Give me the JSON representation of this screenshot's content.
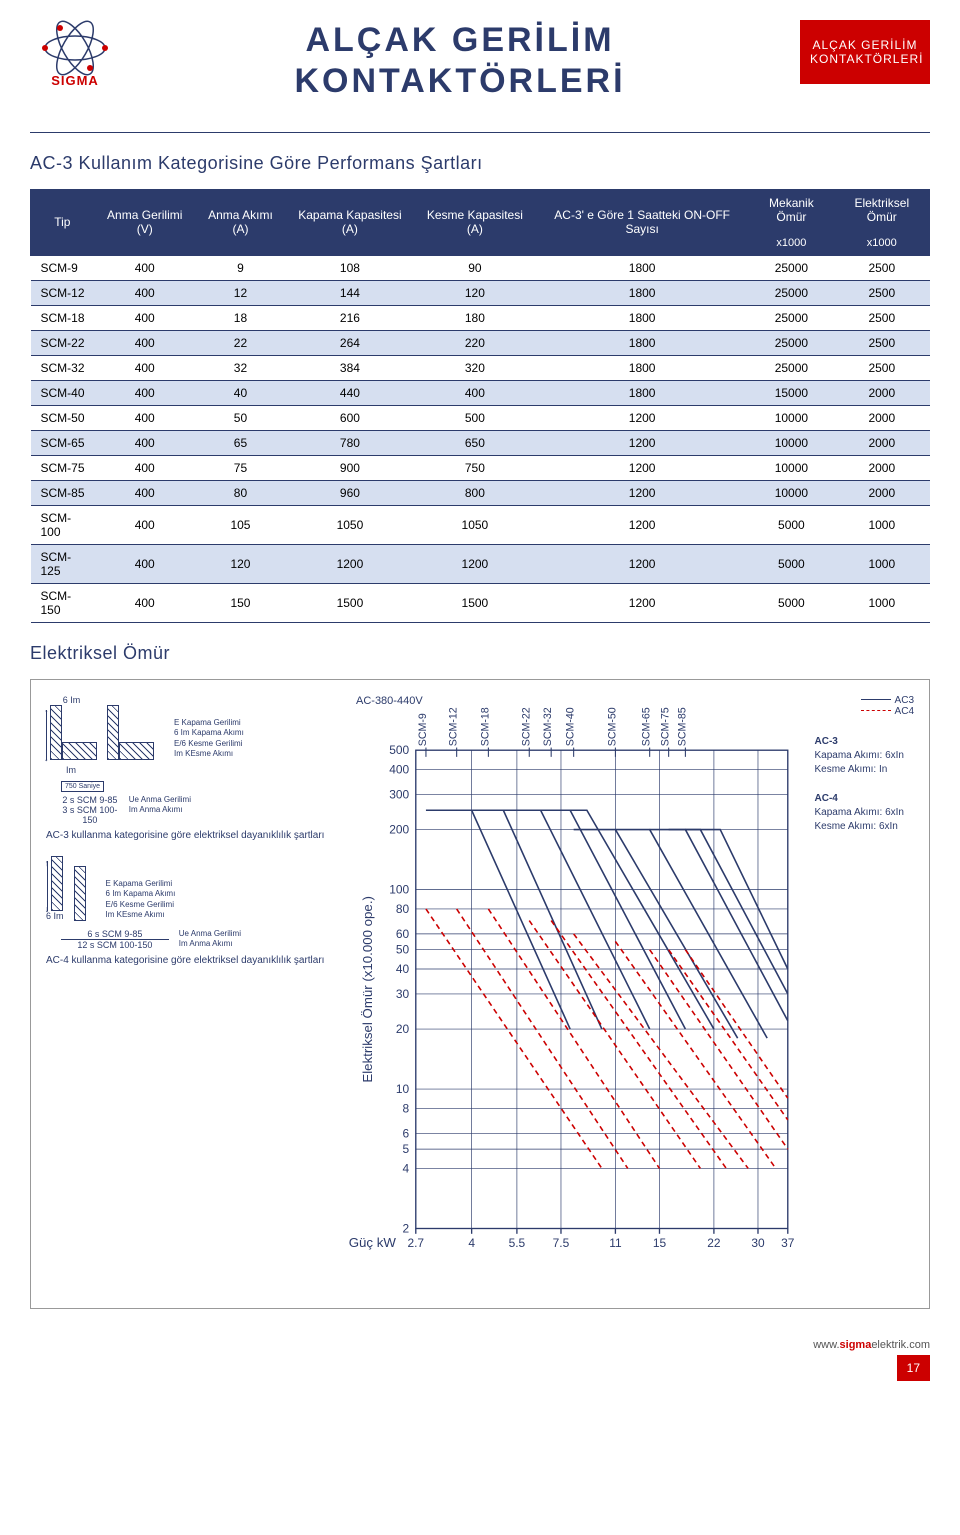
{
  "header": {
    "logo_text": "SIGMA",
    "title_line1": "ALÇAK GERİLİM",
    "title_line2": "KONTAKTÖRLERİ",
    "badge_line1": "ALÇAK GERİLİM",
    "badge_line2": "KONTAKTÖRLERİ"
  },
  "table": {
    "section_title": "AC-3 Kullanım Kategorisine Göre Performans Şartları",
    "headers": {
      "tip": "Tip",
      "gerilim": "Anma Gerilimi (V)",
      "akim": "Anma Akımı (A)",
      "kapama": "Kapama Kapasitesi (A)",
      "kesme": "Kesme Kapasitesi (A)",
      "onoff": "AC-3' e Göre 1 Saatteki ON-OFF Sayısı",
      "mekanik": "Mekanik Ömür",
      "elektriksel": "Elektriksel Ömür",
      "x1000": "x1000"
    },
    "rows": [
      [
        "SCM-9",
        "400",
        "9",
        "108",
        "90",
        "1800",
        "25000",
        "2500"
      ],
      [
        "SCM-12",
        "400",
        "12",
        "144",
        "120",
        "1800",
        "25000",
        "2500"
      ],
      [
        "SCM-18",
        "400",
        "18",
        "216",
        "180",
        "1800",
        "25000",
        "2500"
      ],
      [
        "SCM-22",
        "400",
        "22",
        "264",
        "220",
        "1800",
        "25000",
        "2500"
      ],
      [
        "SCM-32",
        "400",
        "32",
        "384",
        "320",
        "1800",
        "25000",
        "2500"
      ],
      [
        "SCM-40",
        "400",
        "40",
        "440",
        "400",
        "1800",
        "15000",
        "2000"
      ],
      [
        "SCM-50",
        "400",
        "50",
        "600",
        "500",
        "1200",
        "10000",
        "2000"
      ],
      [
        "SCM-65",
        "400",
        "65",
        "780",
        "650",
        "1200",
        "10000",
        "2000"
      ],
      [
        "SCM-75",
        "400",
        "75",
        "900",
        "750",
        "1200",
        "10000",
        "2000"
      ],
      [
        "SCM-85",
        "400",
        "80",
        "960",
        "800",
        "1200",
        "10000",
        "2000"
      ],
      [
        "SCM-100",
        "400",
        "105",
        "1050",
        "1050",
        "1200",
        "5000",
        "1000"
      ],
      [
        "SCM-125",
        "400",
        "120",
        "1200",
        "1200",
        "1200",
        "5000",
        "1000"
      ],
      [
        "SCM-150",
        "400",
        "150",
        "1500",
        "1500",
        "1200",
        "5000",
        "1000"
      ]
    ],
    "alt_color": "#d6dff0",
    "header_bg": "#2c3b6b"
  },
  "chart": {
    "section_title": "Elektriksel Ömür",
    "top_label": "AC-380-440V",
    "y_axis_label": "Elektriksel Ömür (x10.000 ope.)",
    "x_axis_label": "Güç kW",
    "y_ticks": [
      "500",
      "400",
      "300",
      "200",
      "100",
      "80",
      "60",
      "50",
      "40",
      "30",
      "20",
      "10",
      "8",
      "6",
      "5",
      "4",
      "2"
    ],
    "x_ticks": [
      "2.7",
      "4",
      "5.5",
      "7.5",
      "11",
      "15",
      "22",
      "30",
      "37"
    ],
    "top_series_labels": [
      "SCM-9",
      "SCM-12",
      "SCM-18",
      "SCM-22",
      "SCM-32",
      "SCM-40",
      "SCM-50",
      "SCM-65",
      "SCM-75",
      "SCM-85"
    ],
    "line_color_ac3": "#2c3b6b",
    "line_color_ac4": "#cc0000",
    "grid_color": "#2c3b6b",
    "legend_ac3": "AC3",
    "legend_ac4": "AC4",
    "side_labels": {
      "ac3_title": "AC-3",
      "ac3_kapama": "Kapama Akımı: 6xIn",
      "ac3_kesme": "Kesme Akımı: In",
      "ac4_title": "AC-4",
      "ac4_kapama": "Kapama Akımı: 6xIn",
      "ac4_kesme": "Kesme Akımı: 6xIn"
    },
    "diagram": {
      "six_im": "6 Im",
      "im": "Im",
      "saniye": "750 Saniye",
      "two_s": "2 s SCM 9-85",
      "three_s": "3 s SCM 100-150",
      "six_s": "6 s SCM 9-85",
      "twelve_s": "12 s SCM 100-150",
      "leg_e": "E   Kapama Gerilimi",
      "leg_6im": "6 Im Kapama Akımı",
      "leg_e6": "E/6  Kesme Gerilimi",
      "leg_im": "Im   KEsme Akımı",
      "leg_ue": "Ue   Anma Gerilimi",
      "leg_im2": "Im   Anma Akımı",
      "caption_ac3": "AC-3 kullanma kategorisine göre elektriksel dayanıklılık şartları",
      "caption_ac4": "AC-4 kullanma kategorisine göre elektriksel dayanıklılık şartları"
    }
  },
  "footer": {
    "url_pre": "www.",
    "url_bold": "sigma",
    "url_post": "elektrik.com",
    "page": "17"
  }
}
